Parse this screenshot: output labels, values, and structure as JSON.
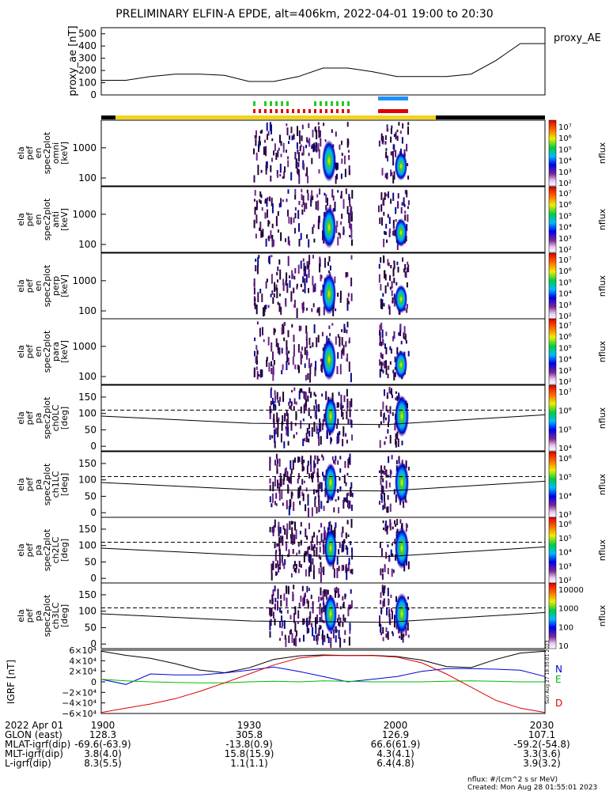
{
  "title": "PRELIMINARY ELFIN-A EPDE, alt=406km, 2022-04-01 19:00 to 20:30",
  "proxy_panel": {
    "ylabel": "proxy_ae [nT]",
    "legend": "proxy_AE",
    "yticks": [
      "500",
      "400",
      "300",
      "200",
      "100",
      "0"
    ]
  },
  "spectrogram_panels": [
    {
      "ylabel": [
        "ela",
        "pef",
        "en",
        "spec2plot",
        "omni",
        "[keV]"
      ],
      "yticks": [
        "1000",
        "100"
      ],
      "cb_ticks": [
        "10⁷",
        "10⁶",
        "10⁵",
        "10⁴",
        "10³",
        "10²"
      ],
      "cb_label": "nflux"
    },
    {
      "ylabel": [
        "ela",
        "pef",
        "en",
        "spec2plot",
        "anti",
        "[keV]"
      ],
      "yticks": [
        "1000",
        "100"
      ],
      "cb_ticks": [
        "10⁷",
        "10⁶",
        "10⁵",
        "10⁴",
        "10³",
        "10²"
      ],
      "cb_label": "nflux"
    },
    {
      "ylabel": [
        "ela",
        "pef",
        "en",
        "spec2plot",
        "perp",
        "[keV]"
      ],
      "yticks": [
        "1000",
        "100"
      ],
      "cb_ticks": [
        "10⁷",
        "10⁶",
        "10⁵",
        "10⁴",
        "10³",
        "10²"
      ],
      "cb_label": "nflux"
    },
    {
      "ylabel": [
        "ela",
        "pef",
        "en",
        "spec2plot",
        "para",
        "[keV]"
      ],
      "yticks": [
        "1000",
        "100"
      ],
      "cb_ticks": [
        "10⁷",
        "10⁶",
        "10⁵",
        "10⁴",
        "10³",
        "10²"
      ],
      "cb_label": "nflux"
    },
    {
      "ylabel": [
        "ela",
        "pef",
        "pa",
        "spec2plot",
        "ch0LC",
        "[deg]"
      ],
      "yticks": [
        "150",
        "100",
        "50",
        "0"
      ],
      "cb_ticks": [
        "10⁷",
        "10⁶",
        "10⁵",
        "10⁴"
      ],
      "cb_label": "nflux"
    },
    {
      "ylabel": [
        "ela",
        "pef",
        "pa",
        "spec2plot",
        "ch1LC",
        "[deg]"
      ],
      "yticks": [
        "150",
        "100",
        "50",
        "0"
      ],
      "cb_ticks": [
        "10⁶",
        "10⁵",
        "10⁴",
        "10³"
      ],
      "cb_label": "nflux"
    },
    {
      "ylabel": [
        "ela",
        "pef",
        "pa",
        "spec2plot",
        "ch2LC",
        "[deg]"
      ],
      "yticks": [
        "150",
        "100",
        "50",
        "0"
      ],
      "cb_ticks": [
        "10⁶",
        "10⁵",
        "10⁴",
        "10³",
        "10²"
      ],
      "cb_label": "nflux"
    },
    {
      "ylabel": [
        "ela",
        "pef",
        "pa",
        "spec2plot",
        "ch3LC",
        "[deg]"
      ],
      "yticks": [
        "150",
        "100",
        "50",
        "0"
      ],
      "cb_ticks": [
        "10000",
        "1000",
        "100",
        "10"
      ],
      "cb_label": "nflux"
    }
  ],
  "igrf_panel": {
    "ylabel": "IGRF [nT]",
    "yticks": [
      "6×10⁴",
      "4×10⁴",
      "2×10⁴",
      "0",
      "−2×10⁴",
      "−4×10⁴",
      "−6×10⁴"
    ],
    "legend": [
      {
        "name": "N",
        "color": "#0000dd"
      },
      {
        "name": "E",
        "color": "#00bb00"
      },
      {
        "name": "D",
        "color": "#dd0000"
      }
    ],
    "side_stamp": "Sun Aug 27 18:35:01 2023"
  },
  "colors": {
    "sunlit_bar": "#f2d31b",
    "dark_bar": "#000000",
    "sci_green": "#22cc22",
    "sci_red": "#dd0000",
    "sci_blue": "#1e90ff"
  },
  "bottom_table": {
    "rows": [
      [
        "2022 Apr 01",
        "1900",
        "1930",
        "2000",
        "2030"
      ],
      [
        "GLON (east)",
        "128.3",
        "305.8",
        "126.9",
        "107.1"
      ],
      [
        "MLAT-igrf(dip)",
        "-69.6(-63.9)",
        "-13.8(0.9)",
        "66.6(61.9)",
        "-59.2(-54.8)"
      ],
      [
        "MLT-igrf(dip)",
        "3.8(4.0)",
        "15.8(15.9)",
        "4.3(4.1)",
        "3.3(3.6)"
      ],
      [
        "L-igrf(dip)",
        "8.3(5.5)",
        "1.1(1.1)",
        "6.4(4.8)",
        "3.9(3.2)"
      ]
    ],
    "footer_units": "nflux: #/(cm^2 s sr MeV)",
    "footer_created": "Created: Mon Aug 28 01:55:01 2023"
  },
  "chart_data": [
    {
      "type": "line",
      "title": "PRELIMINARY ELFIN-A EPDE, alt=406km, 2022-04-01 19:00 to 20:30",
      "ylabel": "proxy_ae [nT]",
      "ylim": [
        0,
        550
      ],
      "x": [
        "19:00",
        "19:05",
        "19:10",
        "19:15",
        "19:20",
        "19:25",
        "19:30",
        "19:35",
        "19:40",
        "19:45",
        "19:50",
        "19:55",
        "20:00",
        "20:05",
        "20:10",
        "20:15",
        "20:20",
        "20:25",
        "20:30"
      ],
      "series": [
        {
          "name": "proxy_AE",
          "values": [
            120,
            120,
            150,
            170,
            170,
            160,
            110,
            110,
            150,
            220,
            220,
            190,
            150,
            150,
            150,
            170,
            280,
            420,
            420
          ]
        }
      ]
    },
    {
      "type": "line",
      "ylabel": "IGRF [nT]",
      "ylim": [
        -60000,
        60000
      ],
      "x": [
        "19:00",
        "19:05",
        "19:10",
        "19:15",
        "19:20",
        "19:25",
        "19:30",
        "19:35",
        "19:40",
        "19:45",
        "19:50",
        "19:55",
        "20:00",
        "20:05",
        "20:10",
        "20:15",
        "20:20",
        "20:25",
        "20:30"
      ],
      "series": [
        {
          "name": "N",
          "values": [
            5000,
            -5000,
            15000,
            13000,
            13000,
            17000,
            22000,
            28000,
            20000,
            10000,
            0,
            5000,
            10000,
            20000,
            25000,
            25000,
            24000,
            22000,
            10000
          ]
        },
        {
          "name": "E",
          "values": [
            5000,
            2000,
            0,
            -1000,
            -2000,
            -2000,
            0,
            1000,
            0,
            2000,
            1000,
            0,
            0,
            0,
            1000,
            2000,
            1000,
            0,
            0
          ]
        },
        {
          "name": "D",
          "values": [
            -58000,
            -50000,
            -42000,
            -32000,
            -18000,
            -2000,
            15000,
            32000,
            45000,
            50000,
            50000,
            50000,
            47000,
            36000,
            15000,
            -10000,
            -35000,
            -50000,
            -58000
          ]
        }
      ]
    }
  ]
}
